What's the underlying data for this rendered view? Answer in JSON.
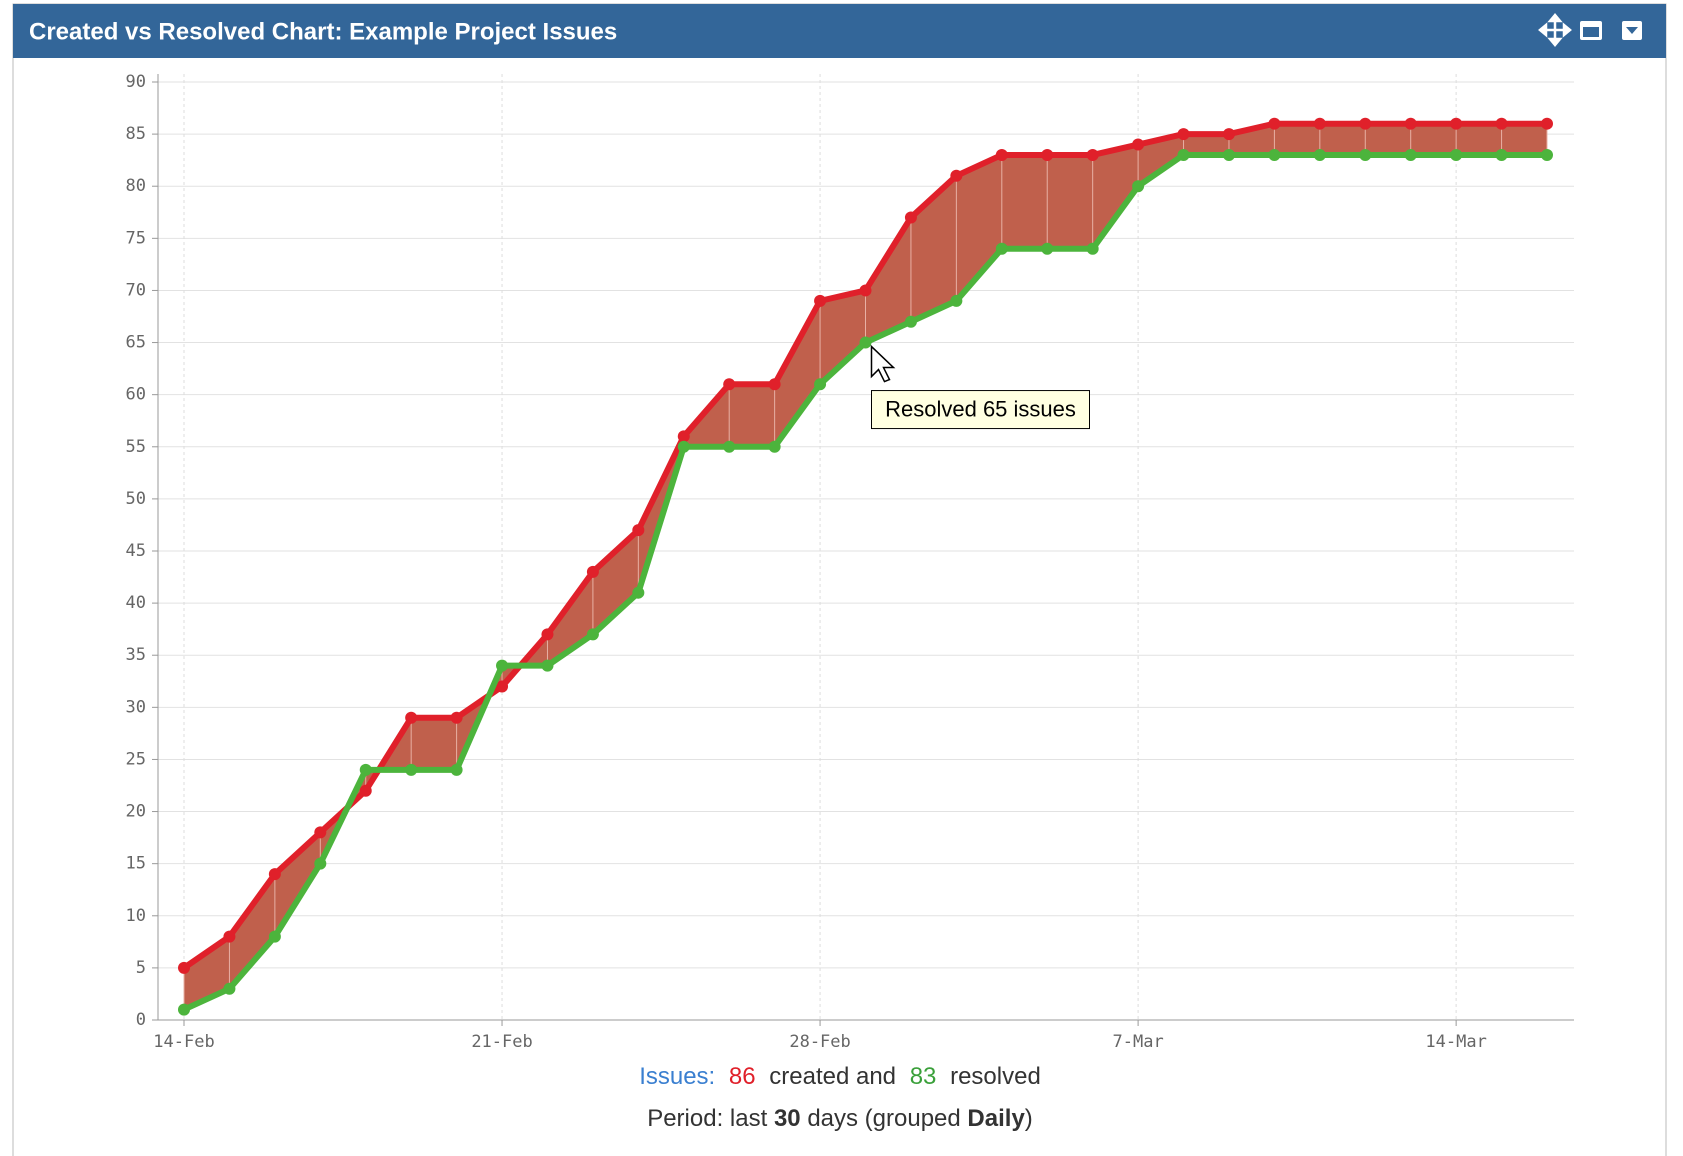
{
  "chart_data": {
    "type": "line",
    "title": "Created vs Resolved Chart: Example Project Issues",
    "categories": [
      "14-Feb",
      null,
      null,
      null,
      null,
      null,
      null,
      "21-Feb",
      null,
      null,
      null,
      null,
      null,
      null,
      "28-Feb",
      null,
      null,
      null,
      null,
      null,
      null,
      "7-Mar",
      null,
      null,
      null,
      null,
      null,
      null,
      "14-Mar",
      null,
      null
    ],
    "series": [
      {
        "name": "created",
        "color": "#e0202a",
        "values": [
          5,
          8,
          14,
          18,
          22,
          29,
          29,
          32,
          37,
          43,
          47,
          56,
          61,
          61,
          69,
          70,
          77,
          81,
          83,
          83,
          83,
          84,
          85,
          85,
          86,
          86,
          86,
          86,
          86,
          86,
          86
        ]
      },
      {
        "name": "resolved",
        "color": "#4cb43c",
        "values": [
          1,
          3,
          8,
          15,
          24,
          24,
          24,
          34,
          34,
          37,
          41,
          55,
          55,
          55,
          61,
          65,
          67,
          69,
          74,
          74,
          74,
          80,
          83,
          83,
          83,
          83,
          83,
          83,
          83,
          83,
          83
        ]
      }
    ],
    "fill_color": "#c0604c",
    "ylim": [
      0,
      90
    ],
    "yticks": [
      0,
      5,
      10,
      15,
      20,
      25,
      30,
      35,
      40,
      45,
      50,
      55,
      60,
      65,
      70,
      75,
      80,
      85,
      90
    ],
    "grid": true,
    "tooltip": {
      "text": "Resolved 65 issues",
      "series": 1,
      "index": 15
    },
    "footer": {
      "label": "Issues:",
      "created": 86,
      "created_text": "created and",
      "resolved": 83,
      "resolved_text": "resolved"
    },
    "period": {
      "prefix": "Period: last",
      "days": 30,
      "days_text": "days (grouped",
      "grouping": "Daily",
      "suffix": ")"
    }
  }
}
